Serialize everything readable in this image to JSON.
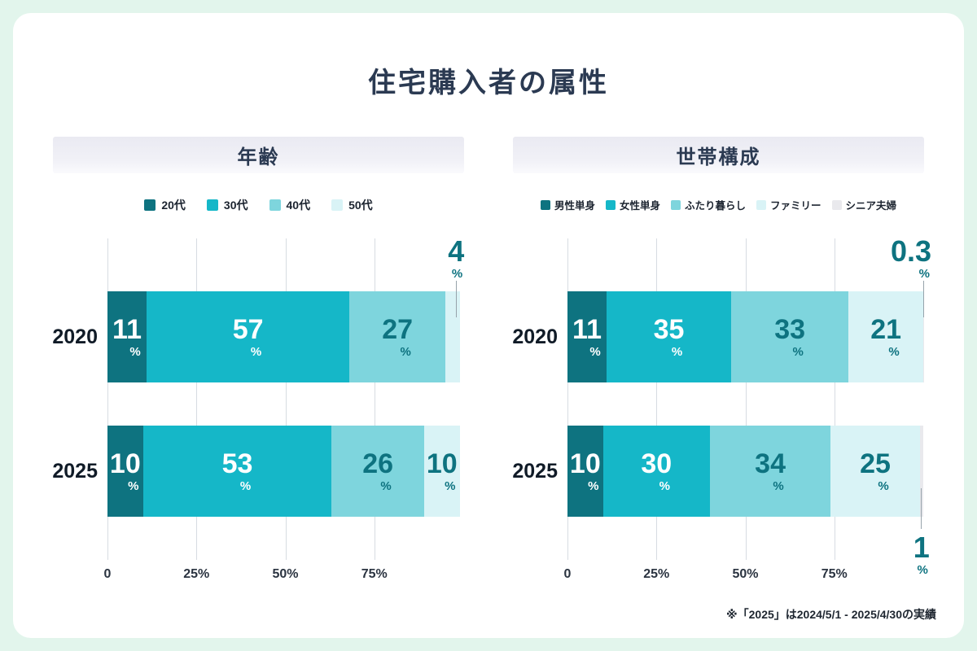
{
  "page": {
    "title": "住宅購入者の属性",
    "footnote": "※「2025」は2024/5/1 - 2025/4/30の実績",
    "background": "#e2f5ec",
    "card_background": "#ffffff",
    "accent_dark_teal": "#0e7380",
    "accent_teal": "#15b7c8"
  },
  "chart_data": [
    {
      "type": "bar",
      "orientation": "horizontal",
      "stacked": true,
      "title": "年齢",
      "categories": [
        "2020",
        "2025"
      ],
      "series": [
        {
          "name": "20代",
          "color": "#0e7380",
          "label_color": "#ffffff",
          "values": [
            11,
            10
          ]
        },
        {
          "name": "30代",
          "color": "#15b7c8",
          "label_color": "#ffffff",
          "values": [
            57,
            53
          ]
        },
        {
          "name": "40代",
          "color": "#7ed5dd",
          "label_color": "#0e7380",
          "values": [
            27,
            26
          ]
        },
        {
          "name": "50代",
          "color": "#d9f3f6",
          "label_color": "#0e7380",
          "values": [
            4,
            10
          ]
        }
      ],
      "xlim": [
        0,
        100
      ],
      "grid": true,
      "legend_position": "top",
      "value_suffix": "%",
      "min_label_value": 5,
      "ticks": [
        {
          "pct": 0,
          "label": "0"
        },
        {
          "pct": 25,
          "label": "25%"
        },
        {
          "pct": 50,
          "label": "50%"
        },
        {
          "pct": 75,
          "label": "75%"
        }
      ],
      "annotations": [
        {
          "row": 0,
          "value": "4",
          "suffix": "%",
          "position": "top",
          "anchor_pct": 98
        }
      ]
    },
    {
      "type": "bar",
      "orientation": "horizontal",
      "stacked": true,
      "title": "世帯構成",
      "categories": [
        "2020",
        "2025"
      ],
      "series": [
        {
          "name": "男性単身",
          "color": "#0e7380",
          "label_color": "#ffffff",
          "values": [
            11,
            10
          ]
        },
        {
          "name": "女性単身",
          "color": "#15b7c8",
          "label_color": "#ffffff",
          "values": [
            35,
            30
          ]
        },
        {
          "name": "ふたり暮らし",
          "color": "#7ed5dd",
          "label_color": "#0e7380",
          "values": [
            33,
            34
          ]
        },
        {
          "name": "ファミリー",
          "color": "#d9f3f6",
          "label_color": "#0e7380",
          "values": [
            21,
            25
          ]
        },
        {
          "name": "シニア夫婦",
          "color": "#e9e9ed",
          "label_color": "#0e7380",
          "values": [
            0.3,
            1
          ]
        }
      ],
      "xlim": [
        0,
        100
      ],
      "grid": true,
      "legend_position": "top",
      "value_suffix": "%",
      "min_label_value": 5,
      "ticks": [
        {
          "pct": 0,
          "label": "0"
        },
        {
          "pct": 25,
          "label": "25%"
        },
        {
          "pct": 50,
          "label": "50%"
        },
        {
          "pct": 75,
          "label": "75%"
        }
      ],
      "annotations": [
        {
          "row": 0,
          "value": "0.3",
          "suffix": "%",
          "position": "top",
          "anchor_pct": 100
        },
        {
          "row": 1,
          "value": "1",
          "suffix": "%",
          "position": "bottom",
          "anchor_pct": 99.5
        }
      ]
    }
  ]
}
